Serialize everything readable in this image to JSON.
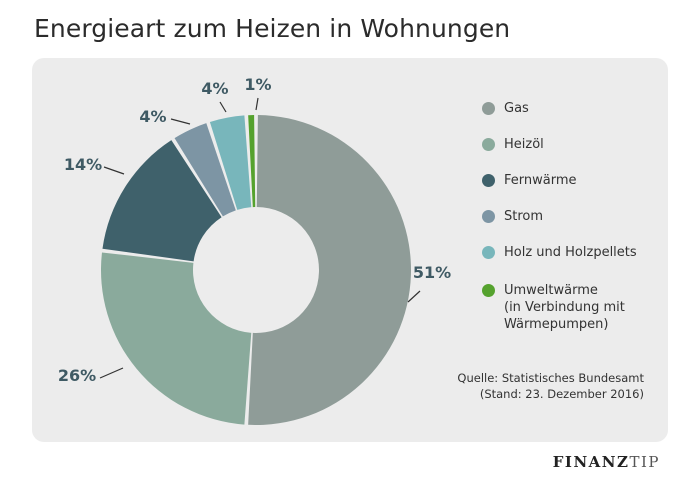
{
  "header": {
    "title": "Energieart zum Heizen in Wohnungen"
  },
  "chart_data": {
    "type": "donut",
    "title": "Energieart zum Heizen in Wohnungen",
    "categories": [
      "Gas",
      "Heizöl",
      "Fernwärme",
      "Strom",
      "Holz und Holzpellets",
      "Umweltwärme\n(in Verbindung mit\nWärmepumpen)"
    ],
    "values": [
      51,
      26,
      14,
      4,
      4,
      1
    ],
    "labels": [
      "51%",
      "26%",
      "14%",
      "4%",
      "4%",
      "1%"
    ],
    "colors": [
      "#8f9c98",
      "#8aaa9c",
      "#3f616b",
      "#7d95a4",
      "#78b6bb",
      "#55a22e"
    ],
    "legend_position": "right"
  },
  "source": {
    "line1": "Quelle: Statistisches Bundesamt",
    "line2": "(Stand: 23. Dezember 2016)"
  },
  "brand": {
    "part1": "FINANZ",
    "part2": "TIP"
  }
}
